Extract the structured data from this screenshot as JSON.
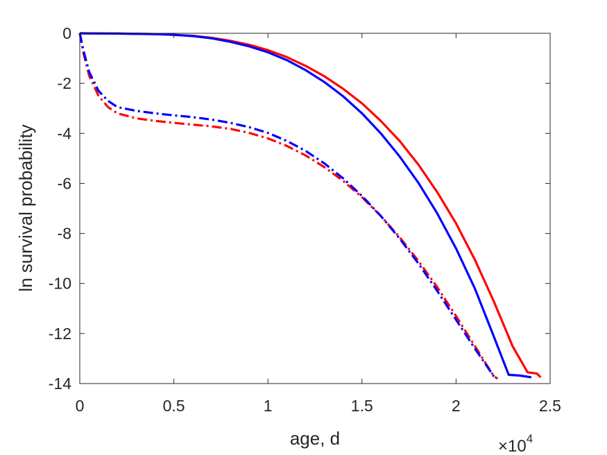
{
  "chart_data": {
    "type": "line",
    "title": "",
    "xlabel": "age, d",
    "ylabel": "ln survival probability",
    "x_multiplier_label": "×10",
    "x_multiplier_exponent": "4",
    "xlim": [
      0,
      25000
    ],
    "ylim": [
      -14,
      0
    ],
    "x_ticks": [
      0,
      5000,
      10000,
      15000,
      20000,
      25000
    ],
    "x_tick_labels": [
      "0",
      "0.5",
      "1",
      "1.5",
      "2",
      "2.5"
    ],
    "y_ticks": [
      0,
      -2,
      -4,
      -6,
      -8,
      -10,
      -12,
      -14
    ],
    "y_tick_labels": [
      "0",
      "-2",
      "-4",
      "-6",
      "-8",
      "-10",
      "-12",
      "-14"
    ],
    "grid": false,
    "legend": "none",
    "series": [
      {
        "color": "#ff0000",
        "style": "solid",
        "x": [
          0,
          2000,
          4000,
          5000,
          6000,
          7000,
          8000,
          9000,
          10000,
          11000,
          12000,
          13000,
          14000,
          15000,
          16000,
          17000,
          18000,
          19000,
          20000,
          21000,
          22000,
          23000,
          23800,
          24300,
          24500
        ],
        "y": [
          0,
          -0.01,
          -0.03,
          -0.06,
          -0.1,
          -0.18,
          -0.3,
          -0.46,
          -0.67,
          -0.95,
          -1.3,
          -1.72,
          -2.22,
          -2.8,
          -3.5,
          -4.3,
          -5.25,
          -6.35,
          -7.6,
          -9.05,
          -10.7,
          -12.5,
          -13.55,
          -13.6,
          -13.75
        ]
      },
      {
        "color": "#0000ff",
        "style": "solid",
        "x": [
          0,
          2000,
          4000,
          5000,
          6000,
          7000,
          8000,
          9000,
          10000,
          11000,
          12000,
          13000,
          14000,
          15000,
          16000,
          17000,
          18000,
          19000,
          20000,
          21000,
          22000,
          22800,
          23400,
          24000
        ],
        "y": [
          0,
          -0.01,
          -0.03,
          -0.06,
          -0.11,
          -0.2,
          -0.34,
          -0.52,
          -0.76,
          -1.07,
          -1.47,
          -1.95,
          -2.52,
          -3.2,
          -4.0,
          -4.92,
          -5.98,
          -7.2,
          -8.6,
          -10.2,
          -12.1,
          -13.65,
          -13.68,
          -13.75
        ]
      },
      {
        "color": "#ff0000",
        "style": "dashdot",
        "x": [
          0,
          200,
          500,
          1000,
          1500,
          2000,
          3000,
          4000,
          5000,
          6000,
          7000,
          8000,
          9000,
          10000,
          11000,
          12000,
          13000,
          14000,
          15000,
          16000,
          17000,
          18000,
          19000,
          20000,
          21000,
          22000,
          22200
        ],
        "y": [
          0,
          -0.8,
          -1.7,
          -2.5,
          -2.95,
          -3.2,
          -3.4,
          -3.5,
          -3.58,
          -3.65,
          -3.72,
          -3.82,
          -3.98,
          -4.2,
          -4.5,
          -4.88,
          -5.35,
          -5.9,
          -6.55,
          -7.3,
          -8.15,
          -9.1,
          -10.15,
          -11.3,
          -12.5,
          -13.7,
          -13.8
        ]
      },
      {
        "color": "#0000ff",
        "style": "dashdot",
        "x": [
          0,
          200,
          500,
          1000,
          1500,
          2000,
          3000,
          4000,
          5000,
          6000,
          7000,
          8000,
          9000,
          10000,
          11000,
          12000,
          13000,
          14000,
          15000,
          16000,
          17000,
          18000,
          19000,
          20000,
          21000,
          22000,
          22200
        ],
        "y": [
          0,
          -0.7,
          -1.55,
          -2.3,
          -2.7,
          -2.95,
          -3.1,
          -3.2,
          -3.28,
          -3.35,
          -3.45,
          -3.58,
          -3.75,
          -3.98,
          -4.3,
          -4.7,
          -5.2,
          -5.8,
          -6.5,
          -7.3,
          -8.2,
          -9.2,
          -10.3,
          -11.45,
          -12.6,
          -13.7,
          -13.8
        ]
      }
    ]
  }
}
